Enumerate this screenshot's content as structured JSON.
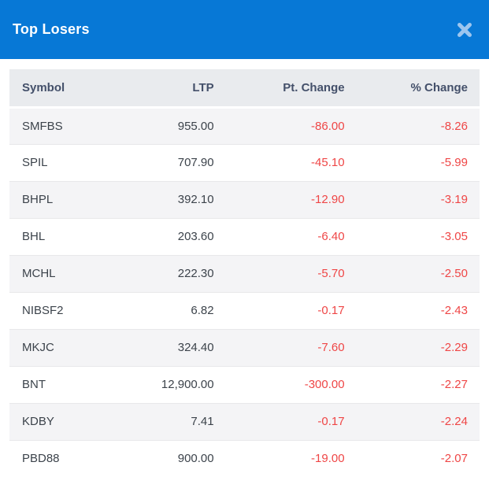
{
  "modal": {
    "title": "Top Losers",
    "close_icon": "x-close-icon"
  },
  "colors": {
    "header_bg": "#0778d6",
    "header_text": "#ffffff",
    "close_icon": "#9dc6ef",
    "table_header_bg": "#e9ebee",
    "table_header_text": "#44506a",
    "row_alt_bg": "#f4f4f6",
    "row_bg": "#ffffff",
    "cell_text": "#3c434b",
    "negative_value": "#ef4646",
    "row_border": "#e8e8ea"
  },
  "table": {
    "columns": [
      "Symbol",
      "LTP",
      "Pt. Change",
      "% Change"
    ],
    "rows": [
      {
        "symbol": "SMFBS",
        "ltp": "955.00",
        "pt_change": "-86.00",
        "pct_change": "-8.26"
      },
      {
        "symbol": "SPIL",
        "ltp": "707.90",
        "pt_change": "-45.10",
        "pct_change": "-5.99"
      },
      {
        "symbol": "BHPL",
        "ltp": "392.10",
        "pt_change": "-12.90",
        "pct_change": "-3.19"
      },
      {
        "symbol": "BHL",
        "ltp": "203.60",
        "pt_change": "-6.40",
        "pct_change": "-3.05"
      },
      {
        "symbol": "MCHL",
        "ltp": "222.30",
        "pt_change": "-5.70",
        "pct_change": "-2.50"
      },
      {
        "symbol": "NIBSF2",
        "ltp": "6.82",
        "pt_change": "-0.17",
        "pct_change": "-2.43"
      },
      {
        "symbol": "MKJC",
        "ltp": "324.40",
        "pt_change": "-7.60",
        "pct_change": "-2.29"
      },
      {
        "symbol": "BNT",
        "ltp": "12,900.00",
        "pt_change": "-300.00",
        "pct_change": "-2.27"
      },
      {
        "symbol": "KDBY",
        "ltp": "7.41",
        "pt_change": "-0.17",
        "pct_change": "-2.24"
      },
      {
        "symbol": "PBD88",
        "ltp": "900.00",
        "pt_change": "-19.00",
        "pct_change": "-2.07"
      }
    ]
  }
}
